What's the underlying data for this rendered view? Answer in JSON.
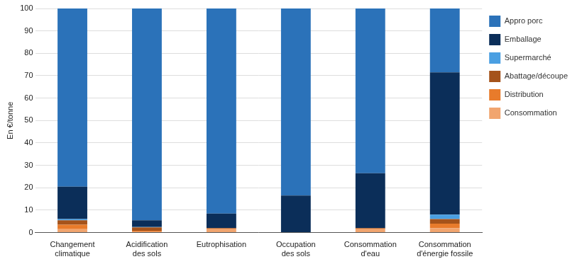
{
  "chart_data": {
    "type": "bar",
    "stacked": true,
    "y_label": "En €/tonne",
    "categories": [
      "Changement climatique",
      "Acidification des sols",
      "Eutrophisation",
      "Occupation des sols",
      "Consommation d'eau",
      "Consommation d'énergie fossile"
    ],
    "series": [
      {
        "name": "Appro porc",
        "color": "#2b72b9",
        "values": [
          79.5,
          94.5,
          91.5,
          83.5,
          73.5,
          28.5
        ]
      },
      {
        "name": "Emballage",
        "color": "#0b2e59",
        "values": [
          14.5,
          3,
          6.5,
          16.3,
          24.5,
          63.5
        ]
      },
      {
        "name": "Supermarché",
        "color": "#4a9fe2",
        "values": [
          0.5,
          0.2,
          0,
          0,
          0,
          2
        ]
      },
      {
        "name": "Abattage/découpe",
        "color": "#a5531b",
        "values": [
          2,
          1.5,
          0.2,
          0,
          0.2,
          2
        ]
      },
      {
        "name": "Distribution",
        "color": "#e87b2b",
        "values": [
          2,
          0.3,
          0.3,
          0,
          0.3,
          2
        ]
      },
      {
        "name": "Consommation",
        "color": "#f1a56f",
        "values": [
          1.5,
          0.5,
          1.5,
          0.2,
          1.5,
          2
        ]
      }
    ],
    "ylim": [
      0,
      100
    ],
    "yticks": [
      0,
      10,
      20,
      30,
      40,
      50,
      60,
      70,
      80,
      90,
      100
    ],
    "grid": true,
    "legend": "right"
  }
}
